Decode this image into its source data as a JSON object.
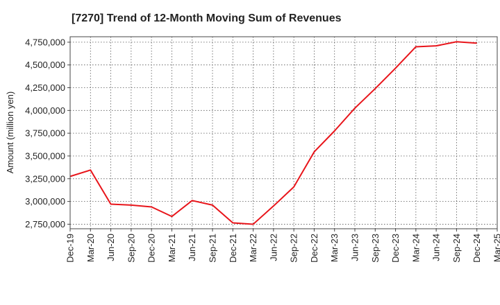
{
  "chart_data": {
    "type": "line",
    "title": "[7270]  Trend of 12-Month Moving Sum of Revenues",
    "ylabel": "Amount (million yen)",
    "xlabel": "",
    "x": [
      "Dec-19",
      "Mar-20",
      "Jun-20",
      "Sep-20",
      "Dec-20",
      "Mar-21",
      "Jun-21",
      "Sep-21",
      "Dec-21",
      "Mar-22",
      "Jun-22",
      "Sep-22",
      "Dec-22",
      "Mar-23",
      "Jun-23",
      "Sep-23",
      "Dec-23",
      "Mar-24",
      "Jun-24",
      "Sep-24",
      "Dec-24",
      "Mar-25"
    ],
    "yticks": [
      2750000,
      3000000,
      3250000,
      3500000,
      3750000,
      4000000,
      4250000,
      4500000,
      4750000
    ],
    "ytick_labels": [
      "2,750,000",
      "3,000,000",
      "3,250,000",
      "3,500,000",
      "3,750,000",
      "4,000,000",
      "4,250,000",
      "4,500,000",
      "4,750,000"
    ],
    "ylim": [
      2700000,
      4810000
    ],
    "grid": true,
    "series": [
      {
        "name": "",
        "color": "#e8141a",
        "values": [
          3275000,
          3345000,
          2970000,
          2960000,
          2940000,
          2835000,
          3010000,
          2960000,
          2765000,
          2750000,
          2950000,
          3160000,
          3545000,
          3775000,
          4025000,
          4240000,
          4465000,
          4700000,
          4710000,
          4755000,
          4740000,
          null
        ]
      }
    ]
  }
}
